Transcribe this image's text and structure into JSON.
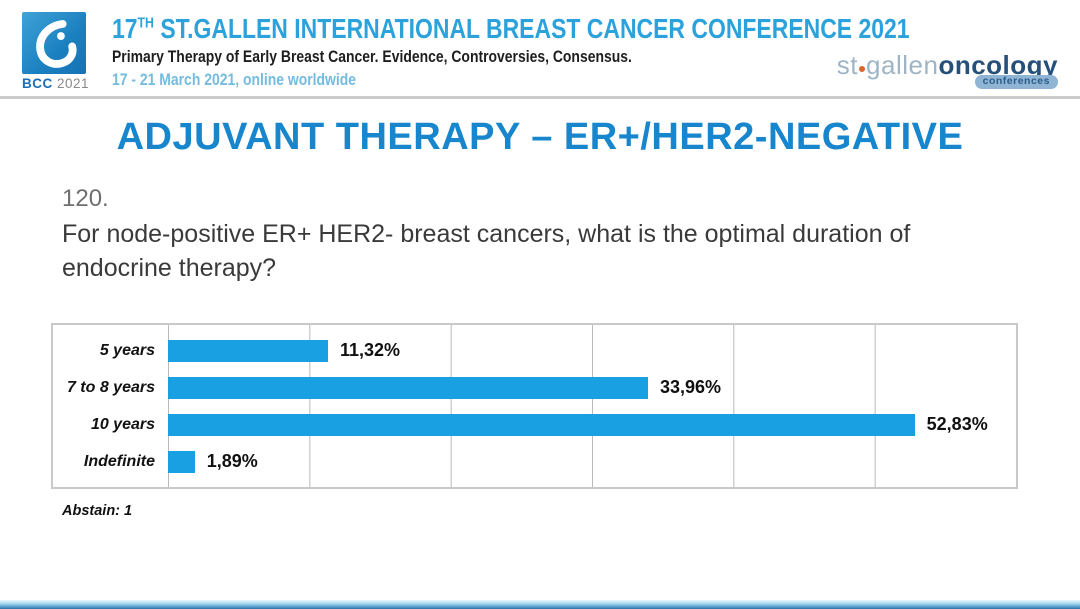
{
  "header": {
    "logo": {
      "bcc": "BCC",
      "year": "2021"
    },
    "title_num": "17",
    "title_sup": "TH",
    "title_rest": " ST.GALLEN INTERNATIONAL BREAST CANCER CONFERENCE 2021",
    "subtitle": "Primary Therapy of Early Breast Cancer. Evidence, Controversies, Consensus.",
    "date_line": "17 - 21 March 2021, online worldwide",
    "org_logo": {
      "stgallen": "st",
      "gallen": "gallen",
      "oncology": "oncology",
      "badge": "conferences"
    }
  },
  "slide": {
    "title": "ADJUVANT THERAPY – ER+/HER2-NEGATIVE",
    "question_number": "120.",
    "question_text": "For node-positive ER+ HER2- breast cancers, what is the optimal duration of endocrine therapy?",
    "abstain": "Abstain: 1"
  },
  "chart_data": {
    "type": "bar",
    "orientation": "horizontal",
    "categories": [
      "5 years",
      "7 to 8 years",
      "10 years",
      "Indefinite"
    ],
    "values": [
      11.32,
      33.96,
      52.83,
      1.89
    ],
    "value_labels": [
      "11,32%",
      "33,96%",
      "52,83%",
      "1,89%"
    ],
    "xlim": [
      0,
      60
    ],
    "gridline_interval": 10,
    "grid": true,
    "legend": false,
    "bar_color": "#18a0e2",
    "title": "",
    "xlabel": "",
    "ylabel": ""
  },
  "colors": {
    "accent_blue": "#1886cc",
    "header_blue": "#2ba2db",
    "bar_blue": "#18a0e2",
    "divider_gray": "#cbcbcb"
  }
}
